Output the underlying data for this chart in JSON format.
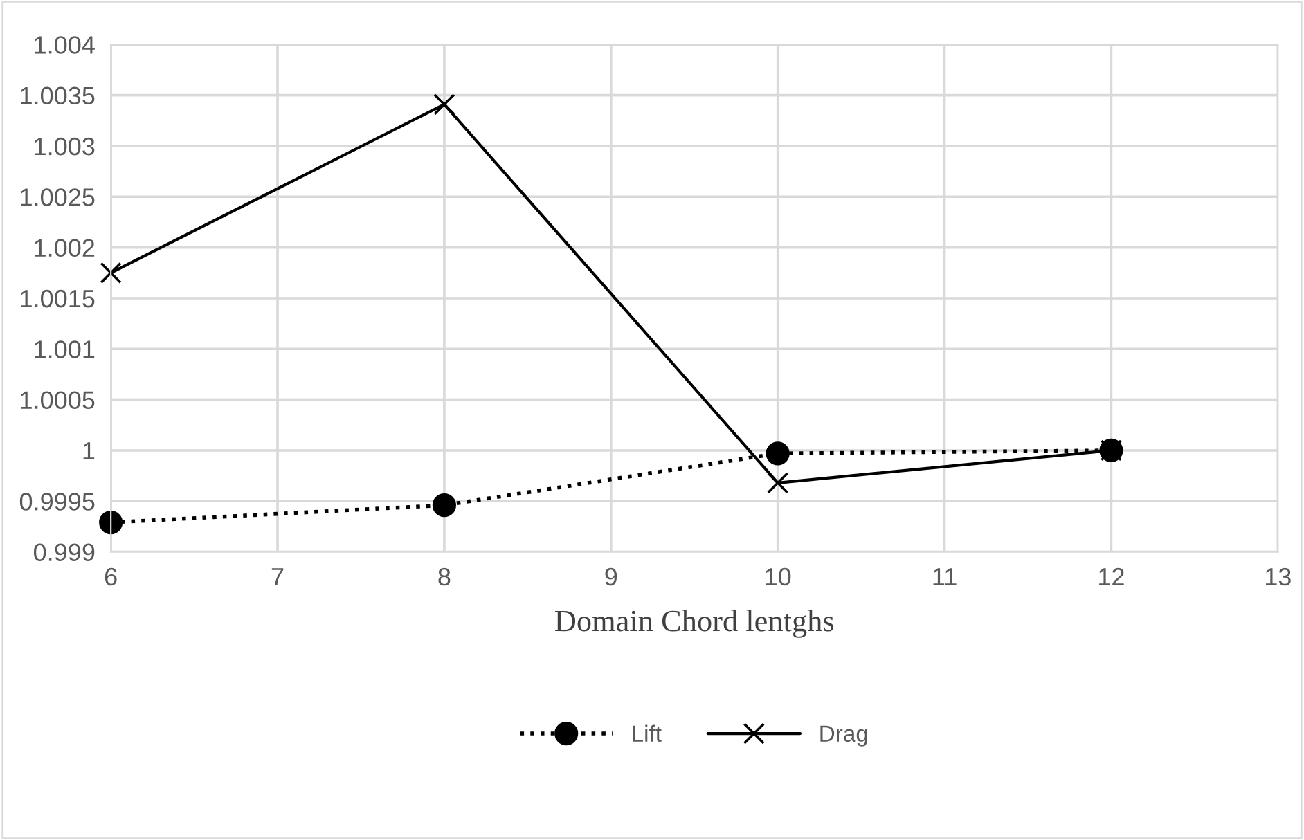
{
  "chart_data": {
    "type": "line",
    "xlabel": "Domain Chord lentghs",
    "x": [
      6,
      8,
      10,
      12
    ],
    "series": [
      {
        "name": "Lift",
        "color": "#000000",
        "values": [
          0.99929,
          0.99946,
          0.99997,
          1.0
        ],
        "marker": "circle",
        "line_style": "dotted"
      },
      {
        "name": "Drag",
        "color": "#000000",
        "values": [
          1.00175,
          1.00341,
          0.99968,
          1.0
        ],
        "marker": "cross",
        "line_style": "solid"
      }
    ],
    "xlim": [
      6,
      13
    ],
    "xticks": [
      6,
      7,
      8,
      9,
      10,
      11,
      12,
      13
    ],
    "ylim": [
      0.999,
      1.004
    ],
    "yticks": [
      {
        "value": 0.999,
        "label": "0.999"
      },
      {
        "value": 0.9995,
        "label": "0.9995"
      },
      {
        "value": 1,
        "label": "1"
      },
      {
        "value": 1.0005,
        "label": "1.0005"
      },
      {
        "value": 1.001,
        "label": "1.001"
      },
      {
        "value": 1.0015,
        "label": "1.0015"
      },
      {
        "value": 1.002,
        "label": "1.002"
      },
      {
        "value": 1.0025,
        "label": "1.0025"
      },
      {
        "value": 1.003,
        "label": "1.003"
      },
      {
        "value": 1.0035,
        "label": "1.0035"
      },
      {
        "value": 1.004,
        "label": "1.004"
      }
    ],
    "grid": true,
    "legend": "bottom"
  }
}
